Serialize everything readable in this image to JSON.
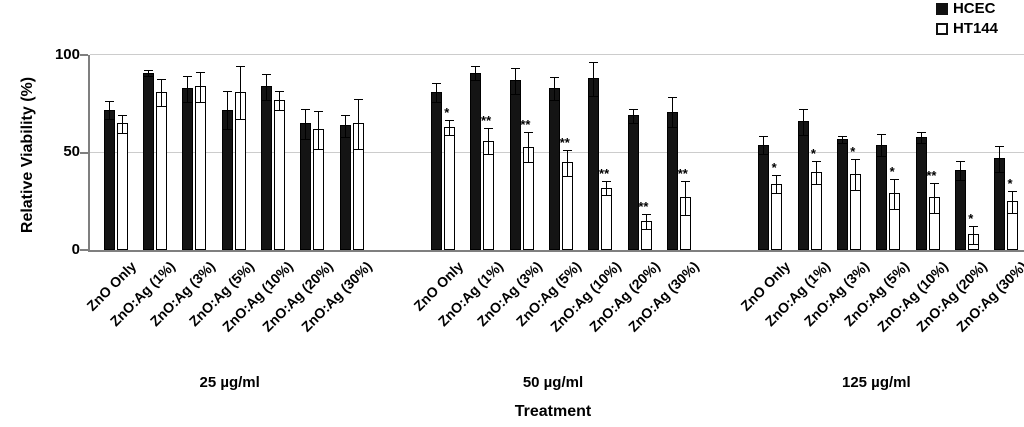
{
  "chart_data": {
    "type": "bar",
    "title": "",
    "xlabel": "Treatment",
    "ylabel": "Relative Viability (%)",
    "yticks": [
      0,
      50,
      100
    ],
    "ylim": [
      0,
      100
    ],
    "grid": "horizontal",
    "legend_position": "top-right",
    "bar_colors": {
      "HCEC": "#141414",
      "HT144": "#ffffff"
    },
    "categories": [
      "ZnO Only",
      "ZnO:Ag (1%)",
      "ZnO:Ag (3%)",
      "ZnO:Ag (5%)",
      "ZnO:Ag (10%)",
      "ZnO:Ag (20%)",
      "ZnO:Ag (30%)"
    ],
    "groups": [
      {
        "label": "25 µg/ml",
        "series": [
          {
            "name": "HCEC",
            "values": [
              72,
              91,
              83,
              72,
              84,
              65,
              64
            ],
            "errors": [
              5,
              2,
              7,
              10,
              7,
              8,
              6
            ],
            "sig": [
              "",
              "",
              "",
              "",
              "",
              "",
              ""
            ]
          },
          {
            "name": "HT144",
            "values": [
              65,
              81,
              84,
              81,
              77,
              62,
              65
            ],
            "errors": [
              5,
              7,
              8,
              14,
              5,
              10,
              13
            ],
            "sig": [
              "",
              "",
              "",
              "",
              "",
              "",
              ""
            ]
          }
        ]
      },
      {
        "label": "50 µg/ml",
        "series": [
          {
            "name": "HCEC",
            "values": [
              81,
              91,
              87,
              83,
              88,
              69,
              71
            ],
            "errors": [
              5,
              4,
              7,
              6,
              9,
              4,
              8
            ],
            "sig": [
              "",
              "",
              "",
              "",
              "",
              "",
              ""
            ]
          },
          {
            "name": "HT144",
            "values": [
              63,
              56,
              53,
              45,
              32,
              15,
              27
            ],
            "errors": [
              4,
              7,
              8,
              7,
              4,
              4,
              9
            ],
            "sig": [
              "*",
              "**",
              "**",
              "**",
              "**",
              "**",
              "**"
            ]
          }
        ]
      },
      {
        "label": "125 µg/ml",
        "series": [
          {
            "name": "HCEC",
            "values": [
              54,
              66,
              57,
              54,
              58,
              41,
              47
            ],
            "errors": [
              5,
              7,
              2,
              6,
              3,
              5,
              7
            ],
            "sig": [
              "",
              "",
              "",
              "",
              "",
              "",
              ""
            ]
          },
          {
            "name": "HT144",
            "values": [
              34,
              40,
              39,
              29,
              27,
              8,
              25
            ],
            "errors": [
              5,
              6,
              8,
              8,
              8,
              5,
              6
            ],
            "sig": [
              "*",
              "*",
              "*",
              "*",
              "**",
              "*",
              "*"
            ]
          }
        ]
      }
    ]
  }
}
